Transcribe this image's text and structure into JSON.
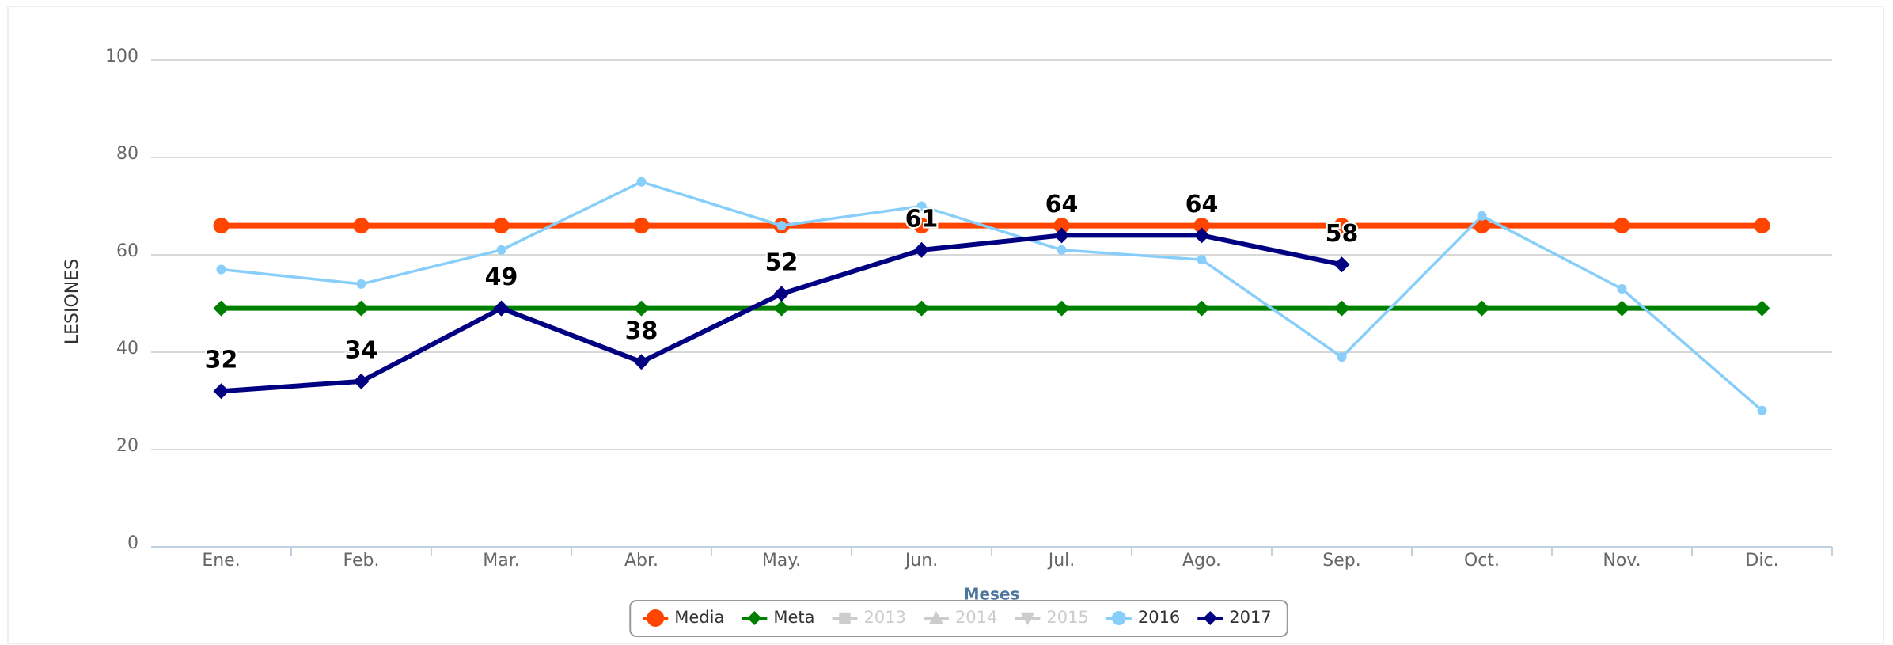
{
  "chart_data": {
    "type": "line",
    "y_axis_label": "LESIONES",
    "x_axis_label": "Meses",
    "categories": [
      "Ene.",
      "Feb.",
      "Mar.",
      "Abr.",
      "May.",
      "Jun.",
      "Jul.",
      "Ago.",
      "Sep.",
      "Oct.",
      "Nov.",
      "Dic."
    ],
    "series": [
      {
        "name": "Media",
        "color": "#ff4500",
        "marker": "circle",
        "visible": true,
        "values": [
          66,
          66,
          66,
          66,
          66,
          66,
          66,
          66,
          66,
          66,
          66,
          66
        ]
      },
      {
        "name": "Meta",
        "color": "#008000",
        "marker": "diamond",
        "visible": true,
        "values": [
          49,
          49,
          49,
          49,
          49,
          49,
          49,
          49,
          49,
          49,
          49,
          49
        ]
      },
      {
        "name": "2013",
        "color": "#cccccc",
        "marker": "square",
        "visible": false,
        "values": [
          null,
          null,
          null,
          null,
          null,
          null,
          null,
          null,
          null,
          null,
          null,
          null
        ]
      },
      {
        "name": "2014",
        "color": "#cccccc",
        "marker": "triangle",
        "visible": false,
        "values": [
          null,
          null,
          null,
          null,
          null,
          null,
          null,
          null,
          null,
          null,
          null,
          null
        ]
      },
      {
        "name": "2015",
        "color": "#cccccc",
        "marker": "triangle-down",
        "visible": false,
        "values": [
          null,
          null,
          null,
          null,
          null,
          null,
          null,
          null,
          null,
          null,
          null,
          null
        ]
      },
      {
        "name": "2016",
        "color": "#87cefa",
        "marker": "small-circle",
        "visible": true,
        "values": [
          57,
          54,
          61,
          75,
          66,
          70,
          61,
          59,
          39,
          68,
          53,
          28
        ]
      },
      {
        "name": "2017",
        "color": "#000080",
        "marker": "diamond",
        "visible": true,
        "data_labels": true,
        "values": [
          32,
          34,
          49,
          38,
          52,
          61,
          64,
          64,
          58,
          null,
          null,
          null
        ]
      }
    ],
    "ylim": [
      0,
      100
    ],
    "yticks": [
      0,
      20,
      40,
      60,
      80,
      100
    ],
    "grid": true,
    "legend": "bottom"
  }
}
